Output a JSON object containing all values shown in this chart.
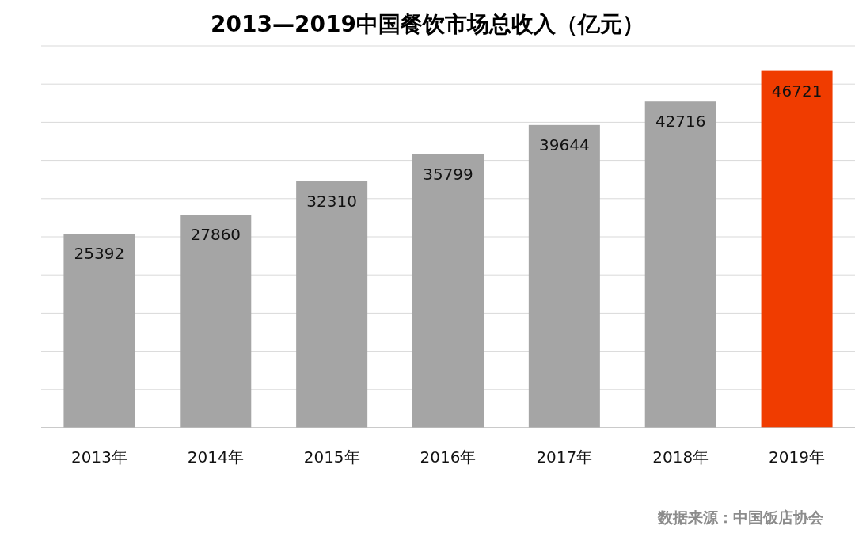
{
  "chart_data": {
    "type": "bar",
    "title": "2013—2019中国餐饮市场总收入（亿元）",
    "categories": [
      "2013年",
      "2014年",
      "2015年",
      "2016年",
      "2017年",
      "2018年",
      "2019年"
    ],
    "values": [
      25392,
      27860,
      32310,
      35799,
      39644,
      42716,
      46721
    ],
    "colors": [
      "#a5a5a5",
      "#a5a5a5",
      "#a5a5a5",
      "#a5a5a5",
      "#a5a5a5",
      "#a5a5a5",
      "#f03c00"
    ],
    "ylim": [
      0,
      50000
    ],
    "yticks": [
      {
        "value": 0,
        "label": null
      },
      {
        "value": 5000,
        "label": null
      },
      {
        "value": 10000,
        "label": null
      },
      {
        "value": 15000,
        "label": null
      },
      {
        "value": 20000,
        "label": null
      },
      {
        "value": 25000,
        "label": null
      },
      {
        "value": 30000,
        "label": null
      },
      {
        "value": 35000,
        "label": null
      },
      {
        "value": 40000,
        "label": null
      },
      {
        "value": 45000,
        "label": null
      },
      {
        "value": 50000,
        "label": null
      }
    ],
    "grid": "y",
    "data_labels": true,
    "annotations": [
      "数据来源：中国饭店协会"
    ]
  }
}
